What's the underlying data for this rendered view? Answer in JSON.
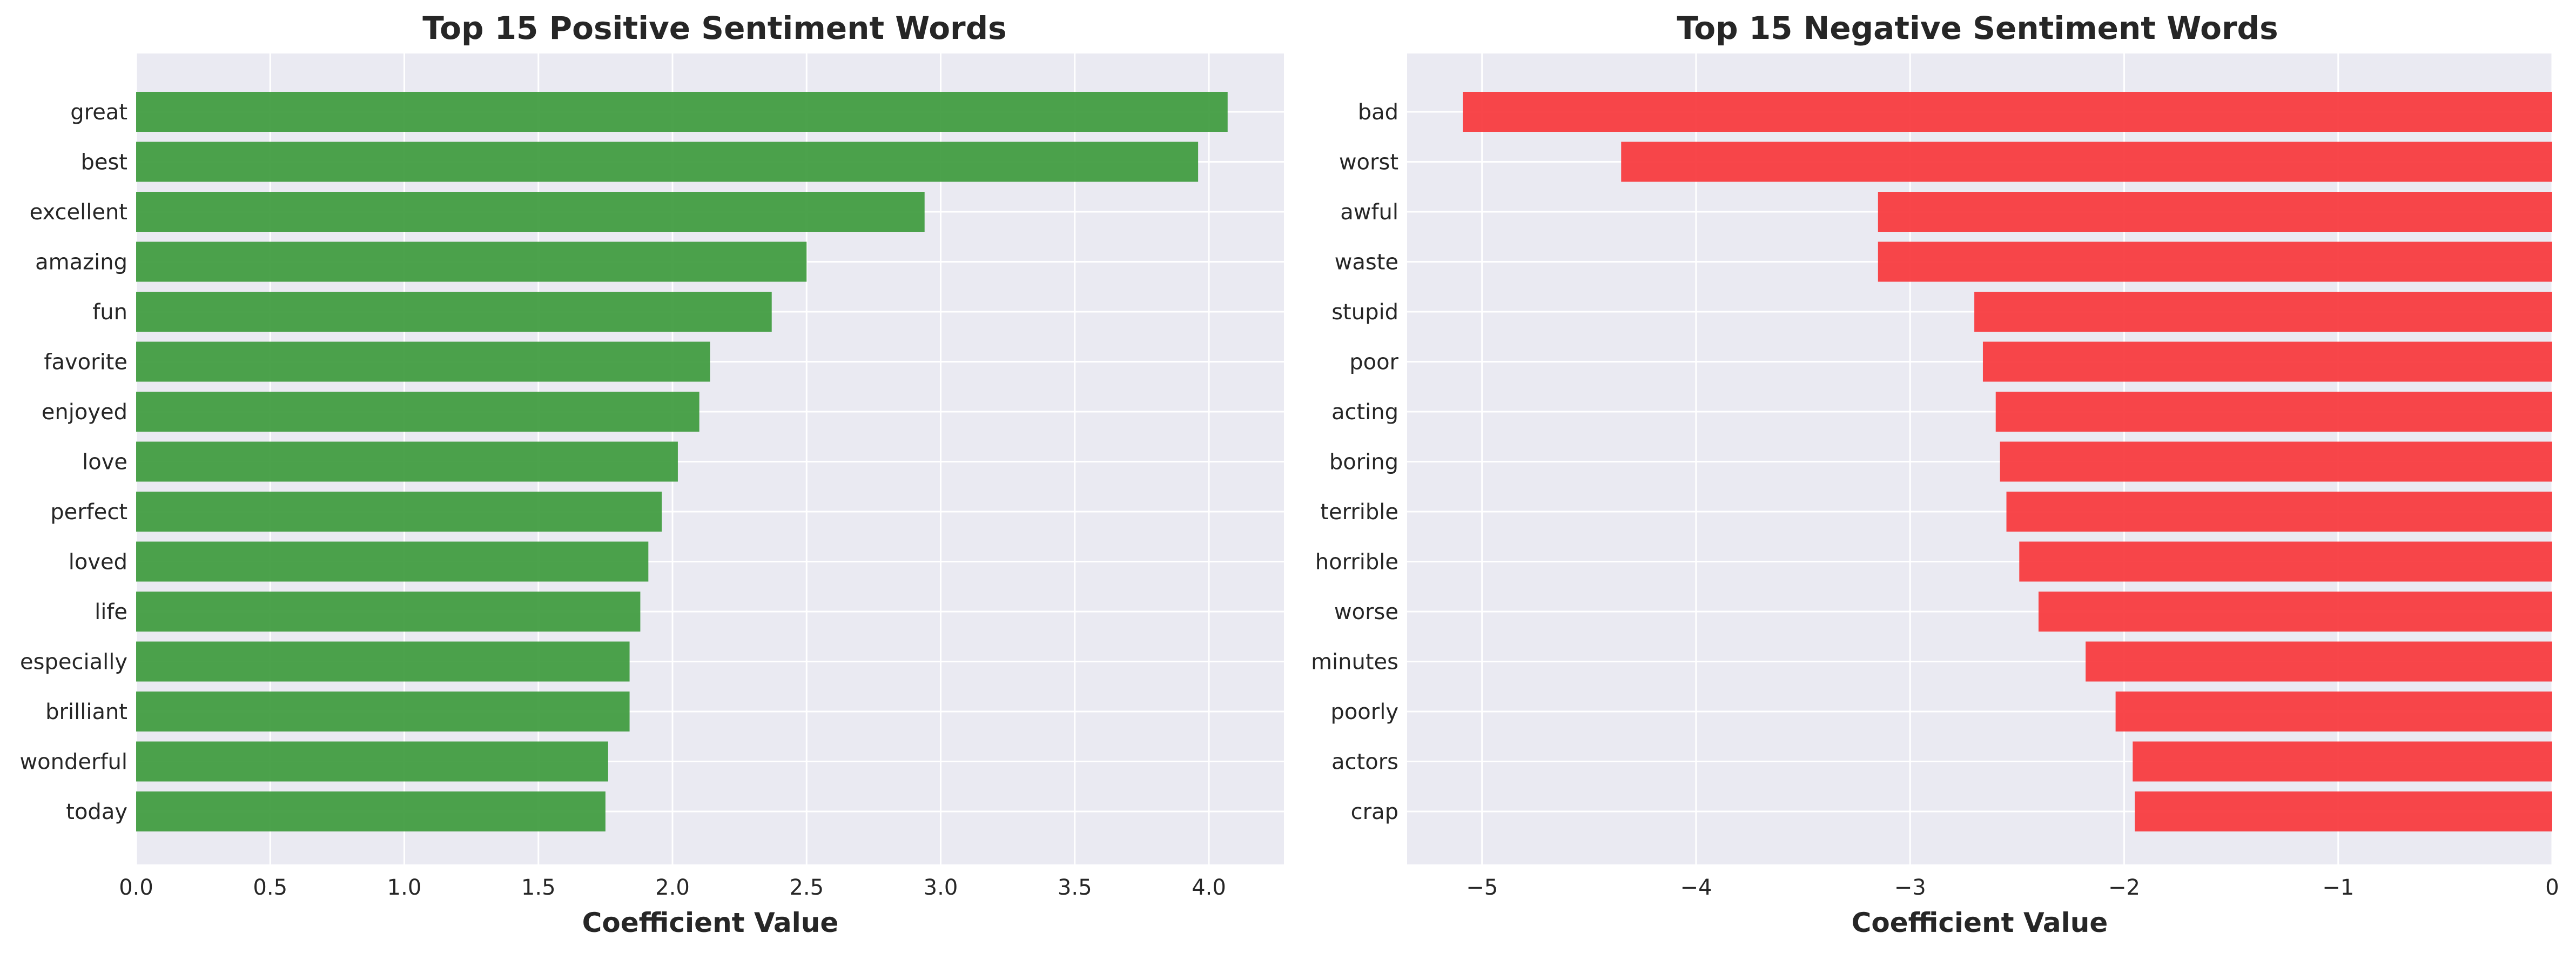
{
  "chart_data": [
    {
      "type": "bar",
      "orientation": "horizontal",
      "title": "Top 15 Positive Sentiment Words",
      "xlabel": "Coefficient Value",
      "ylabel": "",
      "xlim": [
        0,
        4.28
      ],
      "xticks": [
        0.0,
        0.5,
        1.0,
        1.5,
        2.0,
        2.5,
        3.0,
        3.5,
        4.0
      ],
      "xtick_labels": [
        "0.0",
        "0.5",
        "1.0",
        "1.5",
        "2.0",
        "2.5",
        "3.0",
        "3.5",
        "4.0"
      ],
      "categories": [
        "great",
        "best",
        "excellent",
        "amazing",
        "fun",
        "favorite",
        "enjoyed",
        "love",
        "perfect",
        "loved",
        "life",
        "especially",
        "brilliant",
        "wonderful",
        "today"
      ],
      "values": [
        4.07,
        3.96,
        2.94,
        2.5,
        2.37,
        2.14,
        2.1,
        2.02,
        1.96,
        1.91,
        1.88,
        1.84,
        1.84,
        1.76,
        1.75
      ],
      "color": "#3d9a3d",
      "grid": true
    },
    {
      "type": "bar",
      "orientation": "horizontal",
      "title": "Top 15 Negative Sentiment Words",
      "xlabel": "Coefficient Value",
      "ylabel": "",
      "xlim": [
        -5.35,
        0
      ],
      "xticks": [
        -5,
        -4,
        -3,
        -2,
        -1,
        0
      ],
      "xtick_labels": [
        "−5",
        "−4",
        "−3",
        "−2",
        "−1",
        "0"
      ],
      "categories": [
        "bad",
        "worst",
        "awful",
        "waste",
        "stupid",
        "poor",
        "acting",
        "boring",
        "terrible",
        "horrible",
        "worse",
        "minutes",
        "poorly",
        "actors",
        "crap"
      ],
      "values": [
        -5.09,
        -4.35,
        -3.15,
        -3.15,
        -2.7,
        -2.66,
        -2.6,
        -2.58,
        -2.55,
        -2.49,
        -2.4,
        -2.18,
        -2.04,
        -1.96,
        -1.95
      ],
      "color": "#f7363b",
      "grid": true
    }
  ]
}
